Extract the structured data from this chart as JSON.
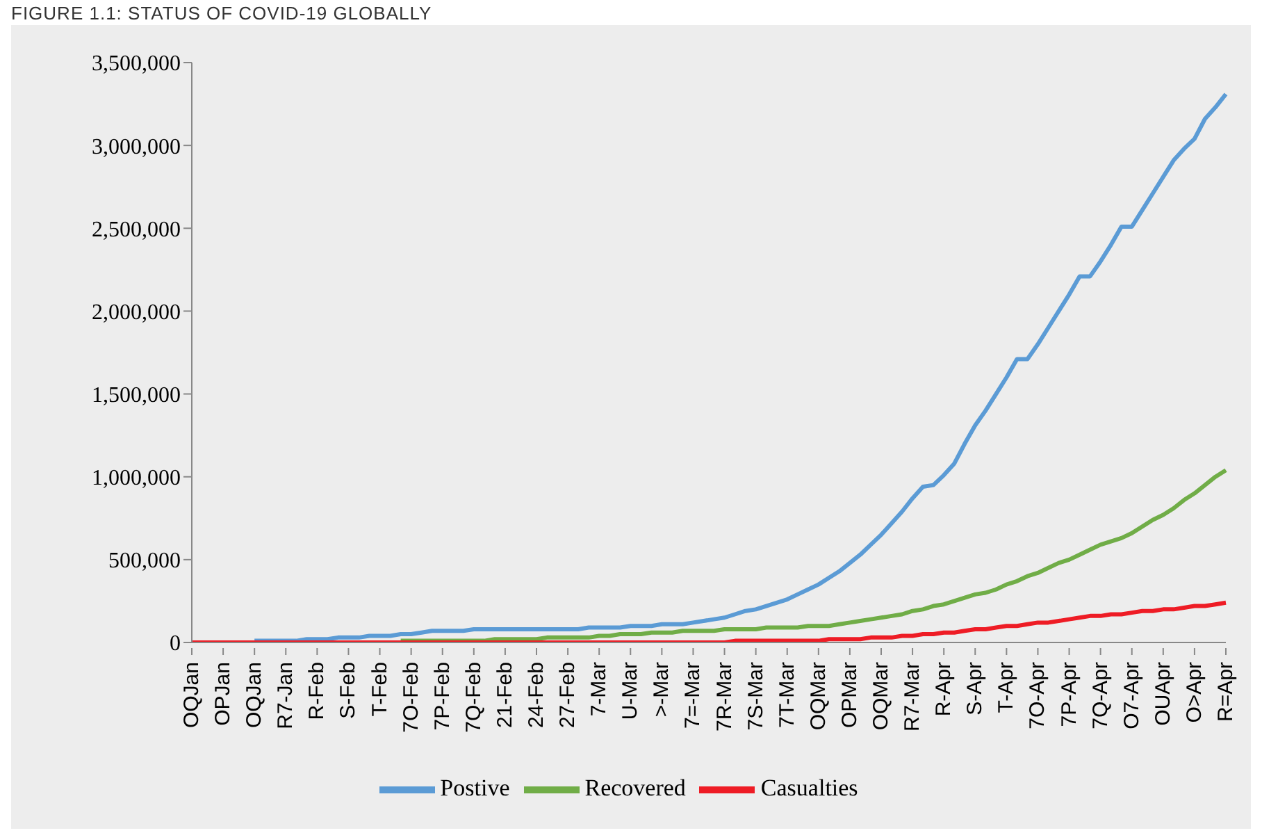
{
  "chart_data": {
    "type": "line",
    "title": "FIGURE 1.1: STATUS OF COVID-19 GLOBALLY",
    "categories": [
      "OQJan",
      null,
      null,
      "OPJan",
      null,
      null,
      "OQJan",
      null,
      null,
      "R7-Jan",
      null,
      null,
      "R-Feb",
      null,
      null,
      "S-Feb",
      null,
      null,
      "T-Feb",
      null,
      null,
      "7O-Feb",
      null,
      null,
      "7P-Feb",
      null,
      null,
      "7Q-Feb",
      null,
      null,
      "21-Feb",
      null,
      null,
      "24-Feb",
      null,
      null,
      "27-Feb",
      null,
      null,
      "7-Mar",
      null,
      null,
      "U-Mar",
      null,
      null,
      ">-Mar",
      null,
      null,
      "7=-Mar",
      null,
      null,
      "7R-Mar",
      null,
      null,
      "7S-Mar",
      null,
      null,
      "7T-Mar",
      null,
      null,
      "OQMar",
      null,
      null,
      "OPMar",
      null,
      null,
      "OQMar",
      null,
      null,
      "R7-Mar",
      null,
      null,
      "R-Apr",
      null,
      null,
      "S-Apr",
      null,
      null,
      "T-Apr",
      null,
      null,
      "7O-Apr",
      null,
      null,
      "7P-Apr",
      null,
      null,
      "7Q-Apr",
      null,
      null,
      "O7-Apr",
      null,
      null,
      "OUApr",
      null,
      null,
      "O>Apr",
      null,
      null,
      "R=Apr"
    ],
    "series": [
      {
        "name": "Postive",
        "color": "#5b9bd5",
        "values": [
          null,
          null,
          null,
          null,
          null,
          null,
          10000,
          10000,
          10000,
          10000,
          10000,
          20000,
          20000,
          20000,
          30000,
          30000,
          30000,
          40000,
          40000,
          40000,
          50000,
          50000,
          60000,
          70000,
          70000,
          70000,
          70000,
          80000,
          80000,
          80000,
          80000,
          80000,
          80000,
          80000,
          80000,
          80000,
          80000,
          80000,
          90000,
          90000,
          90000,
          90000,
          100000,
          100000,
          100000,
          110000,
          110000,
          110000,
          120000,
          130000,
          140000,
          150000,
          170000,
          190000,
          200000,
          220000,
          240000,
          260000,
          290000,
          320000,
          350000,
          390000,
          430000,
          480000,
          530000,
          590000,
          650000,
          720000,
          790000,
          870000,
          940000,
          950000,
          1010000,
          1080000,
          1200000,
          1310000,
          1400000,
          1500000,
          1600000,
          1710000,
          1710000,
          1800000,
          1900000,
          2000000,
          2100000,
          2210000,
          2210000,
          2300000,
          2400000,
          2510000,
          2510000,
          2610000,
          2710000,
          2810000,
          2910000,
          2980000,
          3040000,
          3160000,
          3230000,
          3310000
        ]
      },
      {
        "name": "Recovered",
        "color": "#70ad47",
        "values": [
          null,
          null,
          null,
          null,
          null,
          null,
          null,
          null,
          null,
          null,
          null,
          null,
          null,
          null,
          null,
          null,
          null,
          null,
          null,
          null,
          10000,
          10000,
          10000,
          10000,
          10000,
          10000,
          10000,
          10000,
          10000,
          20000,
          20000,
          20000,
          20000,
          20000,
          30000,
          30000,
          30000,
          30000,
          30000,
          40000,
          40000,
          50000,
          50000,
          50000,
          60000,
          60000,
          60000,
          70000,
          70000,
          70000,
          70000,
          80000,
          80000,
          80000,
          80000,
          90000,
          90000,
          90000,
          90000,
          100000,
          100000,
          100000,
          110000,
          120000,
          130000,
          140000,
          150000,
          160000,
          170000,
          190000,
          200000,
          220000,
          230000,
          250000,
          270000,
          290000,
          300000,
          320000,
          350000,
          370000,
          400000,
          420000,
          450000,
          480000,
          500000,
          530000,
          560000,
          590000,
          610000,
          630000,
          660000,
          700000,
          740000,
          770000,
          810000,
          860000,
          900000,
          950000,
          1000000,
          1040000
        ]
      },
      {
        "name": "Casualties",
        "color": "#ee1c25",
        "values": [
          0,
          0,
          0,
          0,
          0,
          0,
          0,
          0,
          0,
          0,
          0,
          0,
          0,
          0,
          0,
          0,
          0,
          0,
          0,
          0,
          0,
          0,
          0,
          0,
          0,
          0,
          0,
          0,
          0,
          0,
          0,
          0,
          0,
          0,
          0,
          0,
          0,
          0,
          0,
          0,
          0,
          0,
          0,
          0,
          0,
          0,
          0,
          0,
          0,
          0,
          0,
          0,
          10000,
          10000,
          10000,
          10000,
          10000,
          10000,
          10000,
          10000,
          10000,
          20000,
          20000,
          20000,
          20000,
          30000,
          30000,
          30000,
          40000,
          40000,
          50000,
          50000,
          60000,
          60000,
          70000,
          80000,
          80000,
          90000,
          100000,
          100000,
          110000,
          120000,
          120000,
          130000,
          140000,
          150000,
          160000,
          160000,
          170000,
          170000,
          180000,
          190000,
          190000,
          200000,
          200000,
          210000,
          220000,
          220000,
          230000,
          240000
        ]
      }
    ],
    "ylim": [
      0,
      3500000
    ],
    "yticks": [
      0,
      {
        "value": 500000,
        "label": "500,000"
      },
      {
        "value": 1000000,
        "label": "1,000,000"
      },
      {
        "value": 1500000,
        "label": "1,500,000"
      },
      {
        "value": 2000000,
        "label": "2,000,000"
      },
      {
        "value": 2500000,
        "label": "2,500,000"
      },
      {
        "value": 3000000,
        "label": "3,000,000"
      },
      {
        "value": 3500000,
        "label": "3,500,000"
      }
    ],
    "legend": "bottom",
    "marker": "none",
    "line_style": "solid"
  }
}
